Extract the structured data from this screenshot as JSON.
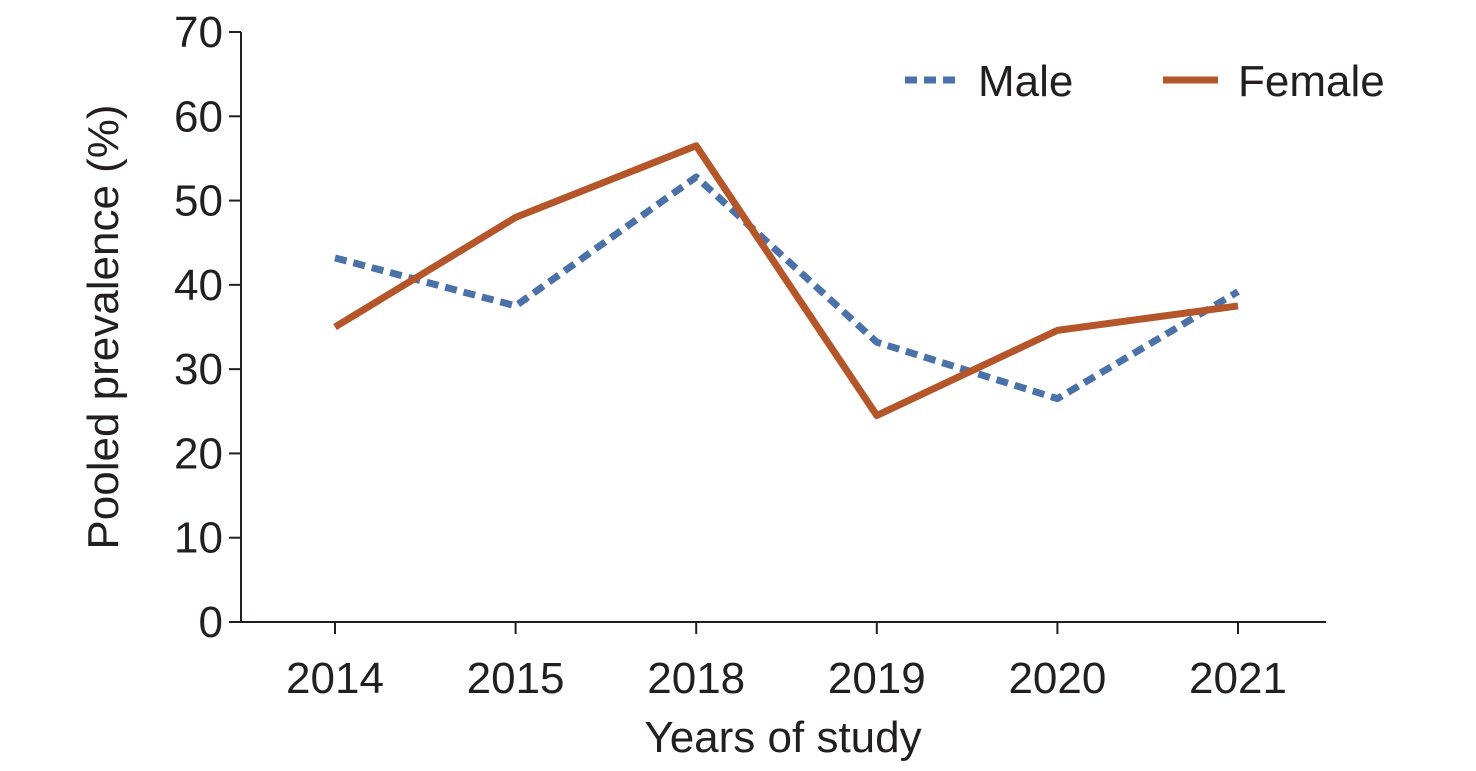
{
  "chart_data": {
    "type": "line",
    "categories": [
      "2014",
      "2015",
      "2018",
      "2019",
      "2020",
      "2021"
    ],
    "series": [
      {
        "name": "Male",
        "values": [
          43.2,
          37.5,
          52.8,
          33.2,
          26.5,
          39.2
        ],
        "color": "#4a72a8",
        "style": "dashed"
      },
      {
        "name": "Female",
        "values": [
          35.0,
          48.0,
          56.5,
          24.5,
          34.6,
          37.5
        ],
        "color": "#b5552a",
        "style": "solid"
      }
    ],
    "ylim": [
      0,
      70
    ],
    "yticks": [
      0,
      10,
      20,
      30,
      40,
      50,
      60,
      70
    ],
    "xlabel": "Years of study",
    "ylabel": "Pooled prevalence (%)",
    "legend_position": "top-right",
    "grid": false
  }
}
